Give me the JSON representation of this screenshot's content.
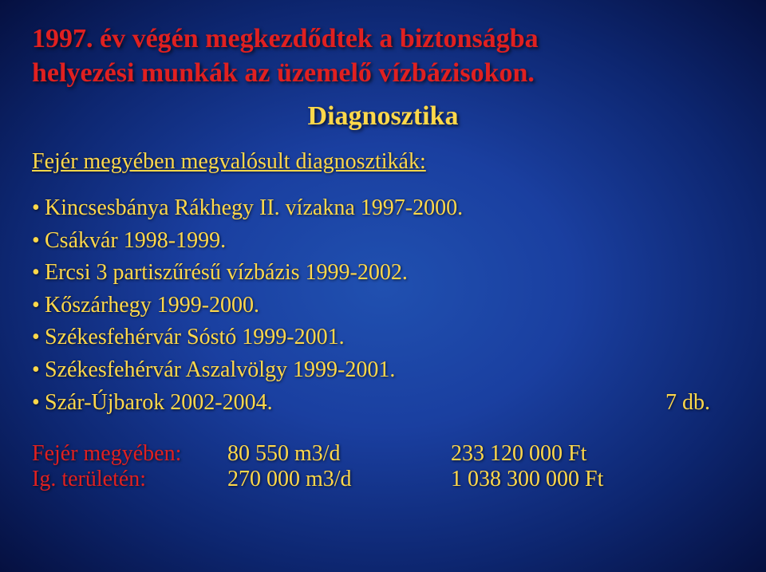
{
  "colors": {
    "title": "#e02020",
    "accent": "#ffd84a",
    "bg_center": "#2050b0",
    "bg_edge": "#051040"
  },
  "title_line1": "1997. év végén megkezdődtek a biztonságba",
  "title_line2": "helyezési munkák az üzemelő vízbázisokon.",
  "subtitle": "Diagnosztika",
  "section_head": "Fejér megyében megvalósult diagnosztikák:",
  "bullets": [
    {
      "text": "Kincsesbánya Rákhegy II. vízakna 1997-2000.",
      "right": ""
    },
    {
      "text": "Csákvár 1998-1999.",
      "right": ""
    },
    {
      "text": "Ercsi 3 partiszűrésű vízbázis 1999-2002.",
      "right": ""
    },
    {
      "text": "Kőszárhegy 1999-2000.",
      "right": ""
    },
    {
      "text": "Székesfehérvár Sóstó 1999-2001.",
      "right": ""
    },
    {
      "text": "Székesfehérvár Aszalvölgy 1999-2001.",
      "right": ""
    },
    {
      "text": "Szár-Újbarok 2002-2004.",
      "right": "7 db."
    }
  ],
  "table": [
    {
      "label": "Fejér megyében:",
      "v1": "80 550 m3/d",
      "v2": "233 120 000 Ft"
    },
    {
      "label": "Ig. területén:",
      "v1": "270 000 m3/d",
      "v2": "1 038 300 000 Ft"
    }
  ]
}
